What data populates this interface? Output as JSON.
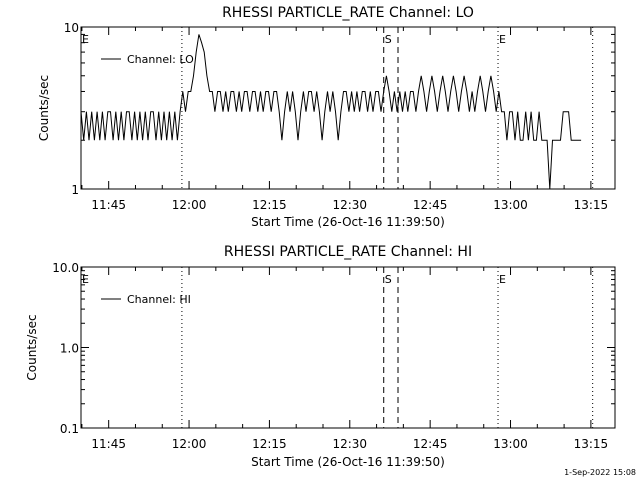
{
  "chart_data": [
    {
      "type": "line",
      "title": "RHESSI PARTICLE_RATE Channel: LO",
      "xlabel": "Start Time (26-Oct-16 11:39:50)",
      "ylabel": "Counts/sec",
      "yscale": "log",
      "ylim": [
        1,
        10
      ],
      "ytick_labels": [
        "1",
        "10"
      ],
      "xlim": [
        "11:39:50",
        "13:19:30"
      ],
      "xtick_labels": [
        "11:45",
        "12:00",
        "12:15",
        "12:30",
        "12:45",
        "13:00",
        "13:15"
      ],
      "legend": {
        "placement": "top-left",
        "entries": [
          "Channel: LO"
        ]
      },
      "markers": [
        {
          "label": "E",
          "time": "11:39:50",
          "style": "dotted"
        },
        {
          "label": "",
          "time": "11:58:40",
          "style": "dotted"
        },
        {
          "label": "S",
          "time": "12:36:20",
          "style": "dashed"
        },
        {
          "label": "",
          "time": "12:39:00",
          "style": "dashed"
        },
        {
          "label": "E",
          "time": "12:57:40",
          "style": "dotted"
        },
        {
          "label": "",
          "time": "13:15:20",
          "style": "dotted"
        }
      ],
      "series": [
        {
          "name": "Channel: LO",
          "points": [
            [
              "11:39:50",
              3
            ],
            [
              "11:40:20",
              2
            ],
            [
              "11:40:50",
              3
            ],
            [
              "11:41:20",
              2
            ],
            [
              "11:41:50",
              3
            ],
            [
              "11:42:20",
              2
            ],
            [
              "11:42:50",
              3
            ],
            [
              "11:43:20",
              2
            ],
            [
              "11:43:50",
              3
            ],
            [
              "11:44:20",
              2
            ],
            [
              "11:44:50",
              3
            ],
            [
              "11:45:20",
              3
            ],
            [
              "11:45:50",
              2
            ],
            [
              "11:46:20",
              3
            ],
            [
              "11:46:50",
              2
            ],
            [
              "11:47:20",
              3
            ],
            [
              "11:47:50",
              2
            ],
            [
              "11:48:20",
              3
            ],
            [
              "11:48:50",
              3
            ],
            [
              "11:49:20",
              2
            ],
            [
              "11:49:50",
              3
            ],
            [
              "11:50:20",
              2
            ],
            [
              "11:50:50",
              3
            ],
            [
              "11:51:20",
              2
            ],
            [
              "11:51:50",
              3
            ],
            [
              "11:52:20",
              2
            ],
            [
              "11:52:50",
              3
            ],
            [
              "11:53:20",
              3
            ],
            [
              "11:53:50",
              2
            ],
            [
              "11:54:20",
              3
            ],
            [
              "11:54:50",
              2
            ],
            [
              "11:55:20",
              3
            ],
            [
              "11:55:50",
              2
            ],
            [
              "11:56:20",
              3
            ],
            [
              "11:56:50",
              2
            ],
            [
              "11:57:20",
              3
            ],
            [
              "11:57:50",
              2
            ],
            [
              "11:58:20",
              3
            ],
            [
              "11:58:50",
              4
            ],
            [
              "11:59:20",
              3
            ],
            [
              "11:59:50",
              4
            ],
            [
              "12:00:20",
              4
            ],
            [
              "12:00:50",
              5
            ],
            [
              "12:01:20",
              7
            ],
            [
              "12:01:50",
              9
            ],
            [
              "12:02:20",
              8
            ],
            [
              "12:02:50",
              7
            ],
            [
              "12:03:20",
              5
            ],
            [
              "12:03:50",
              4
            ],
            [
              "12:04:20",
              4
            ],
            [
              "12:04:50",
              3
            ],
            [
              "12:05:20",
              4
            ],
            [
              "12:05:50",
              4
            ],
            [
              "12:06:20",
              3
            ],
            [
              "12:06:50",
              4
            ],
            [
              "12:07:20",
              3
            ],
            [
              "12:07:50",
              4
            ],
            [
              "12:08:20",
              4
            ],
            [
              "12:08:50",
              3
            ],
            [
              "12:09:20",
              4
            ],
            [
              "12:09:50",
              3
            ],
            [
              "12:10:20",
              4
            ],
            [
              "12:10:50",
              4
            ],
            [
              "12:11:20",
              3
            ],
            [
              "12:11:50",
              4
            ],
            [
              "12:12:20",
              4
            ],
            [
              "12:12:50",
              3
            ],
            [
              "12:13:20",
              4
            ],
            [
              "12:13:50",
              3
            ],
            [
              "12:14:20",
              4
            ],
            [
              "12:14:50",
              4
            ],
            [
              "12:15:20",
              3
            ],
            [
              "12:15:50",
              4
            ],
            [
              "12:16:20",
              4
            ],
            [
              "12:16:50",
              3
            ],
            [
              "12:17:20",
              2
            ],
            [
              "12:17:50",
              3
            ],
            [
              "12:18:20",
              4
            ],
            [
              "12:18:50",
              3
            ],
            [
              "12:19:20",
              4
            ],
            [
              "12:19:50",
              3
            ],
            [
              "12:20:20",
              2
            ],
            [
              "12:20:50",
              3
            ],
            [
              "12:21:20",
              4
            ],
            [
              "12:21:50",
              3
            ],
            [
              "12:22:20",
              4
            ],
            [
              "12:22:50",
              4
            ],
            [
              "12:23:20",
              3
            ],
            [
              "12:23:50",
              4
            ],
            [
              "12:24:20",
              3
            ],
            [
              "12:24:50",
              2
            ],
            [
              "12:25:20",
              3
            ],
            [
              "12:25:50",
              4
            ],
            [
              "12:26:20",
              3
            ],
            [
              "12:26:50",
              4
            ],
            [
              "12:27:20",
              3
            ],
            [
              "12:27:50",
              2
            ],
            [
              "12:28:20",
              3
            ],
            [
              "12:28:50",
              4
            ],
            [
              "12:29:20",
              4
            ],
            [
              "12:29:50",
              3
            ],
            [
              "12:30:20",
              4
            ],
            [
              "12:30:50",
              3
            ],
            [
              "12:31:20",
              4
            ],
            [
              "12:31:50",
              3
            ],
            [
              "12:32:20",
              4
            ],
            [
              "12:32:50",
              4
            ],
            [
              "12:33:20",
              3
            ],
            [
              "12:33:50",
              4
            ],
            [
              "12:34:20",
              3
            ],
            [
              "12:34:50",
              4
            ],
            [
              "12:35:20",
              4
            ],
            [
              "12:35:50",
              3
            ],
            [
              "12:36:20",
              4
            ],
            [
              "12:36:50",
              5
            ],
            [
              "12:37:20",
              4
            ],
            [
              "12:37:50",
              3
            ],
            [
              "12:38:20",
              4
            ],
            [
              "12:38:50",
              3
            ],
            [
              "12:39:20",
              4
            ],
            [
              "12:39:50",
              3
            ],
            [
              "12:40:20",
              4
            ],
            [
              "12:40:50",
              3
            ],
            [
              "12:41:20",
              4
            ],
            [
              "12:41:50",
              4
            ],
            [
              "12:42:20",
              3
            ],
            [
              "12:42:50",
              4
            ],
            [
              "12:43:20",
              5
            ],
            [
              "12:43:50",
              4
            ],
            [
              "12:44:20",
              3
            ],
            [
              "12:44:50",
              4
            ],
            [
              "12:45:20",
              5
            ],
            [
              "12:45:50",
              4
            ],
            [
              "12:46:20",
              3
            ],
            [
              "12:46:50",
              4
            ],
            [
              "12:47:20",
              5
            ],
            [
              "12:47:50",
              4
            ],
            [
              "12:48:20",
              3
            ],
            [
              "12:48:50",
              4
            ],
            [
              "12:49:20",
              5
            ],
            [
              "12:49:50",
              4
            ],
            [
              "12:50:20",
              3
            ],
            [
              "12:50:50",
              4
            ],
            [
              "12:51:20",
              5
            ],
            [
              "12:51:50",
              4
            ],
            [
              "12:52:20",
              3
            ],
            [
              "12:52:50",
              4
            ],
            [
              "12:53:20",
              3
            ],
            [
              "12:53:50",
              4
            ],
            [
              "12:54:20",
              5
            ],
            [
              "12:54:50",
              4
            ],
            [
              "12:55:20",
              3
            ],
            [
              "12:55:50",
              4
            ],
            [
              "12:56:20",
              5
            ],
            [
              "12:56:50",
              4
            ],
            [
              "12:57:20",
              3
            ],
            [
              "12:57:50",
              4
            ],
            [
              "12:58:20",
              3
            ],
            [
              "12:58:50",
              3
            ],
            [
              "12:59:20",
              2
            ],
            [
              "12:59:50",
              3
            ],
            [
              "13:00:20",
              3
            ],
            [
              "13:00:50",
              2
            ],
            [
              "13:01:20",
              3
            ],
            [
              "13:01:50",
              2
            ],
            [
              "13:02:20",
              2
            ],
            [
              "13:02:50",
              3
            ],
            [
              "13:03:20",
              2
            ],
            [
              "13:03:50",
              3
            ],
            [
              "13:04:20",
              2
            ],
            [
              "13:04:50",
              2
            ],
            [
              "13:05:20",
              3
            ],
            [
              "13:05:50",
              2
            ],
            [
              "13:06:20",
              2
            ],
            [
              "13:06:50",
              2
            ],
            [
              "13:07:20",
              1
            ],
            [
              "13:07:50",
              2
            ],
            [
              "13:08:20",
              2
            ],
            [
              "13:08:50",
              2
            ],
            [
              "13:09:20",
              2
            ],
            [
              "13:09:50",
              3
            ],
            [
              "13:10:20",
              3
            ],
            [
              "13:10:50",
              3
            ],
            [
              "13:11:20",
              2
            ],
            [
              "13:11:50",
              2
            ],
            [
              "13:12:20",
              2
            ],
            [
              "13:12:50",
              2
            ],
            [
              "13:13:10",
              2
            ]
          ]
        }
      ]
    },
    {
      "type": "line",
      "title": "RHESSI PARTICLE_RATE Channel: HI",
      "xlabel": "Start Time (26-Oct-16 11:39:50)",
      "ylabel": "Counts/sec",
      "yscale": "log",
      "ylim": [
        0.1,
        10
      ],
      "ytick_labels": [
        "0.1",
        "1.0",
        "10.0"
      ],
      "xlim": [
        "11:39:50",
        "13:19:30"
      ],
      "xtick_labels": [
        "11:45",
        "12:00",
        "12:15",
        "12:30",
        "12:45",
        "13:00",
        "13:15"
      ],
      "legend": {
        "placement": "top-left",
        "entries": [
          "Channel: HI"
        ]
      },
      "markers": [
        {
          "label": "E",
          "time": "11:39:50",
          "style": "dotted"
        },
        {
          "label": "",
          "time": "11:58:40",
          "style": "dotted"
        },
        {
          "label": "S",
          "time": "12:36:20",
          "style": "dashed"
        },
        {
          "label": "",
          "time": "12:39:00",
          "style": "dashed"
        },
        {
          "label": "E",
          "time": "12:57:40",
          "style": "dotted"
        },
        {
          "label": "",
          "time": "13:15:20",
          "style": "dotted"
        }
      ],
      "series": [
        {
          "name": "Channel: HI",
          "points": []
        }
      ]
    }
  ],
  "footer": {
    "timestamp": "1-Sep-2022 15:08"
  }
}
